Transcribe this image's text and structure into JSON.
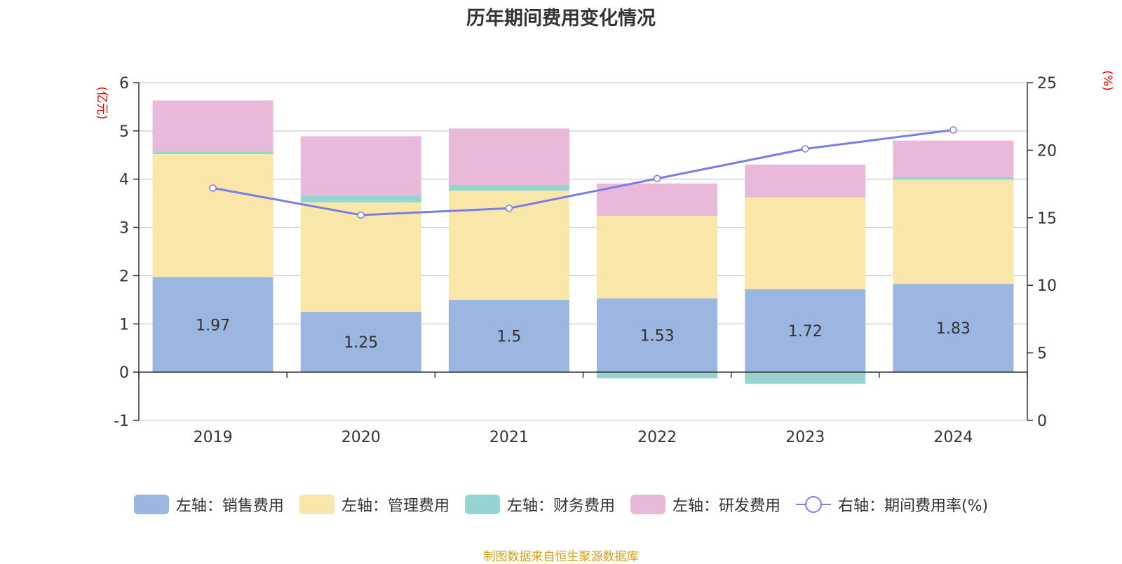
{
  "chart_data": {
    "type": "bar",
    "title": "历年期间费用变化情况",
    "categories": [
      "2019",
      "2020",
      "2021",
      "2022",
      "2023",
      "2024"
    ],
    "left_axis": {
      "unit_label": "(亿元)",
      "ylim": [
        -1,
        6
      ],
      "ticks": [
        "-1",
        "0",
        "1",
        "2",
        "3",
        "4",
        "5",
        "6"
      ]
    },
    "right_axis": {
      "unit_label": "(%)",
      "ylim": [
        0,
        25
      ],
      "ticks": [
        "0",
        "5",
        "10",
        "15",
        "20",
        "25"
      ]
    },
    "series": [
      {
        "name": "左轴：销售费用",
        "kind": "bar",
        "color": "#9bb6e0",
        "values": [
          1.97,
          1.25,
          1.5,
          1.53,
          1.72,
          1.83
        ],
        "labels": [
          "1.97",
          "1.25",
          "1.5",
          "1.53",
          "1.72",
          "1.83"
        ]
      },
      {
        "name": "左轴：管理费用",
        "kind": "bar",
        "color": "#f8e7a8",
        "values": [
          2.55,
          2.27,
          2.26,
          1.71,
          1.9,
          2.16
        ]
      },
      {
        "name": "左轴：财务费用",
        "kind": "bar",
        "color": "#96d4d4",
        "values": [
          0.05,
          0.15,
          0.12,
          -0.13,
          -0.24,
          0.05
        ]
      },
      {
        "name": "左轴：研发费用",
        "kind": "bar",
        "color": "#e8b9d8",
        "values": [
          1.06,
          1.22,
          1.17,
          0.67,
          0.68,
          0.76
        ]
      },
      {
        "name": "右轴：期间费用率(%)",
        "kind": "line",
        "color": "#7b7ce8",
        "values": [
          17.2,
          15.2,
          15.7,
          17.9,
          20.1,
          21.5
        ]
      }
    ],
    "grid": true,
    "legend_position": "bottom"
  },
  "source_note": "制图数据来自恒生聚源数据库"
}
